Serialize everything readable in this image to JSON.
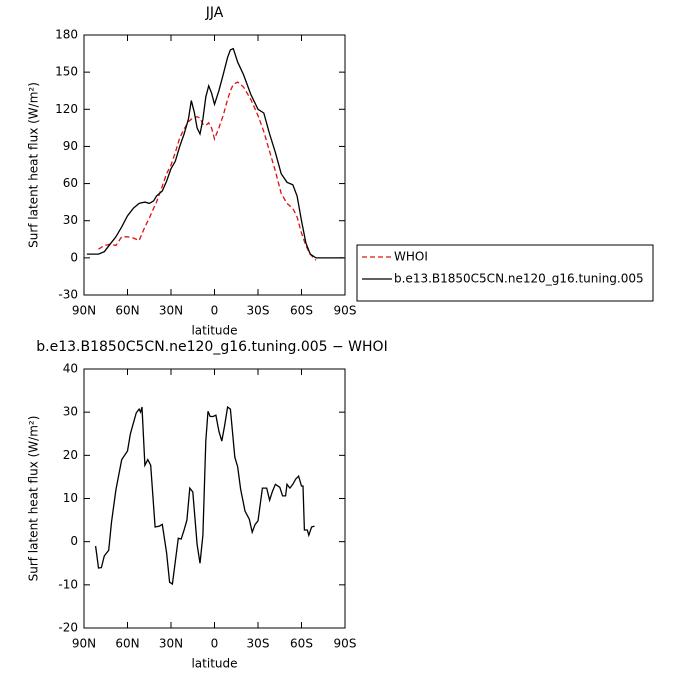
{
  "chart_data": [
    {
      "type": "line",
      "title": "JJA",
      "xlabel": "latitude",
      "ylabel": "Surf latent heat flux (W/m²)",
      "x": [
        88,
        84,
        80,
        76,
        72,
        68,
        64,
        60,
        56,
        52,
        48,
        45,
        42,
        40,
        36,
        33,
        30,
        27,
        24,
        21,
        18,
        16,
        14,
        12,
        10,
        8,
        6,
        4,
        2,
        0,
        -3,
        -6,
        -9,
        -11,
        -13,
        -16,
        -20,
        -25,
        -30,
        -34,
        -38,
        -42,
        -46,
        -50,
        -54,
        -57,
        -60,
        -63,
        -66,
        -70,
        -75,
        -80,
        -85,
        -89
      ],
      "series": [
        {
          "name": "WHOI",
          "color": "#e01010",
          "dashed": true,
          "values": [
            null,
            null,
            7,
            10,
            11,
            10,
            17,
            17,
            16,
            14,
            25,
            32,
            40,
            45,
            58,
            68,
            75,
            85,
            97,
            104,
            110,
            112,
            113,
            114,
            113,
            108,
            107,
            109,
            105,
            96,
            105,
            115,
            128,
            135,
            140,
            142,
            138,
            128,
            115,
            102,
            86,
            70,
            52,
            44,
            40,
            33,
            20,
            10,
            3,
            -2,
            null,
            null,
            null,
            null
          ]
        },
        {
          "name": "b.e13.B1850C5CN.ne120_g16.tuning.005",
          "color": "#000000",
          "dashed": false,
          "values": [
            3,
            3,
            3,
            5,
            11,
            17,
            25,
            34,
            40,
            44,
            45,
            44,
            46,
            50,
            54,
            62,
            72,
            78,
            90,
            100,
            112,
            127,
            118,
            105,
            100,
            112,
            130,
            139,
            133,
            124,
            135,
            148,
            162,
            168,
            169,
            158,
            148,
            132,
            120,
            117,
            100,
            85,
            68,
            61,
            59,
            50,
            30,
            12,
            3,
            0,
            0,
            0,
            0,
            0
          ]
        }
      ],
      "xlim": [
        90,
        -90
      ],
      "xticks": [
        {
          "value": 90,
          "label": "90N"
        },
        {
          "value": 60,
          "label": "60N"
        },
        {
          "value": 30,
          "label": "30N"
        },
        0,
        {
          "value": -30,
          "label": "30S"
        },
        {
          "value": -60,
          "label": "60S"
        },
        {
          "value": -90,
          "label": "90S"
        }
      ],
      "ylim": [
        -30,
        180
      ],
      "yticks": [
        -30,
        0,
        30,
        60,
        90,
        120,
        150,
        180
      ],
      "legend": "outside-right"
    },
    {
      "type": "line",
      "title": "b.e13.B1850C5CN.ne120_g16.tuning.005 − WHOI",
      "xlabel": "latitude",
      "ylabel": "Surf latent heat flux (W/m²)",
      "x": [
        82,
        80,
        78,
        76,
        73,
        71,
        68,
        64,
        60,
        58,
        54,
        52,
        51,
        50,
        48,
        46,
        44,
        41,
        38,
        36,
        33,
        31,
        29,
        25,
        23,
        21,
        19,
        17,
        15,
        12,
        10,
        8,
        6,
        4.5,
        3,
        1,
        -1,
        -3,
        -5,
        -7,
        -9,
        -11,
        -14,
        -16,
        -18,
        -21,
        -24,
        -26,
        -28,
        -30,
        -33,
        -36,
        -38,
        -40,
        -42,
        -45,
        -47,
        -49,
        -50,
        -52,
        -54,
        -56,
        -58,
        -60,
        -61,
        -62,
        -64,
        -65,
        -67,
        -69
      ],
      "series": [
        {
          "name": "b.e13.B1850C5CN.ne120_g16.tuning.005 − WHOI",
          "color": "#000000",
          "dashed": false,
          "values": [
            -1,
            -6.1,
            -6,
            -3.3,
            -2,
            4.5,
            12,
            19,
            21,
            25,
            29.8,
            30.7,
            30,
            31.2,
            17.7,
            19,
            17.7,
            3.4,
            3.6,
            4,
            -2.6,
            -9.4,
            -9.8,
            0.8,
            0.6,
            2.7,
            5,
            12.4,
            11.5,
            -0.6,
            -5,
            1.5,
            23.3,
            30.2,
            29,
            29,
            29.3,
            25.6,
            23.3,
            27,
            31.2,
            30.7,
            19.6,
            17.3,
            12.2,
            7.1,
            5.2,
            2.2,
            4,
            4.8,
            12.4,
            12.4,
            9.6,
            11.7,
            13.3,
            12.6,
            10.6,
            10.6,
            13.3,
            12.4,
            13.3,
            14.5,
            15.2,
            12.9,
            12.9,
            2.7,
            2.7,
            1.5,
            3.4,
            3.6
          ]
        }
      ],
      "xlim": [
        90,
        -90
      ],
      "xticks": [
        {
          "value": 90,
          "label": "90N"
        },
        {
          "value": 60,
          "label": "60N"
        },
        {
          "value": 30,
          "label": "30N"
        },
        0,
        {
          "value": -30,
          "label": "30S"
        },
        {
          "value": -60,
          "label": "60S"
        },
        {
          "value": -90,
          "label": "90S"
        }
      ],
      "ylim": [
        -20,
        40
      ],
      "yticks": [
        -20,
        -10,
        0,
        10,
        20,
        30,
        40
      ]
    }
  ]
}
